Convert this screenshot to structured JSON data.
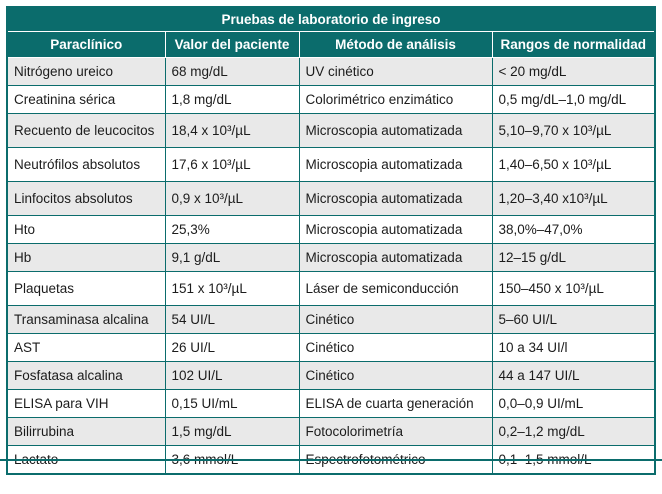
{
  "title": "Pruebas de laboratorio de ingreso",
  "columns": [
    "Paraclínico",
    "Valor del paciente",
    "Método de análisis",
    "Rangos de normalidad"
  ],
  "rows": [
    [
      "Nitrógeno ureico",
      "68 mg/dL",
      "UV cinético",
      "< 20 mg/dL"
    ],
    [
      "Creatinina sérica",
      "1,8 mg/dL",
      "Colorimétrico enzimático",
      "0,5 mg/dL–1,0 mg/dL"
    ],
    [
      "Recuento de leucocitos",
      "18,4 x 10³/µL",
      "Microscopia automatizada",
      "5,10–9,70 x 10³/µL"
    ],
    [
      "Neutrófilos absolutos",
      "17,6 x 10³/µL",
      "Microscopia automatizada",
      "1,40–6,50 x 10³/µL"
    ],
    [
      "Linfocitos absolutos",
      "0,9 x 10³/µL",
      "Microscopia automatizada",
      "1,20–3,40 x10³/µL"
    ],
    [
      "Hto",
      "25,3%",
      "Microscopia automatizada",
      "38,0%–47,0%"
    ],
    [
      "Hb",
      "9,1 g/dL",
      "Microscopia automatizada",
      "12–15 g/dL"
    ],
    [
      "Plaquetas",
      "151 x 10³/µL",
      "Láser de semiconducción",
      "150–450 x 10³/µL"
    ],
    [
      "Transaminasa alcalina",
      "54 UI/L",
      "Cinético",
      "5–60 UI/L"
    ],
    [
      "AST",
      "26 UI/L",
      "Cinético",
      "10 a 34 UI/l"
    ],
    [
      "Fosfatasa alcalina",
      "102 UI/L",
      "Cinético",
      "44 a 147 UI/L"
    ],
    [
      "ELISA para VIH",
      "0,15 UI/mL",
      "ELISA de cuarta generación",
      "0,0–0,9 UI/mL"
    ],
    [
      "Bilirrubina",
      "1,5 mg/dL",
      "Fotocolorimetría",
      "0,2–1,2 mg/dL"
    ],
    [
      "Lactato",
      "3,6 mmol/L",
      "Espectrofotométrico",
      "0,1–1,5 mmol/L"
    ]
  ],
  "colors": {
    "teal": "#0b6c6c",
    "alt_row": "#e9e9e9",
    "text": "#1c1c1c",
    "header_text": "#ffffff"
  }
}
